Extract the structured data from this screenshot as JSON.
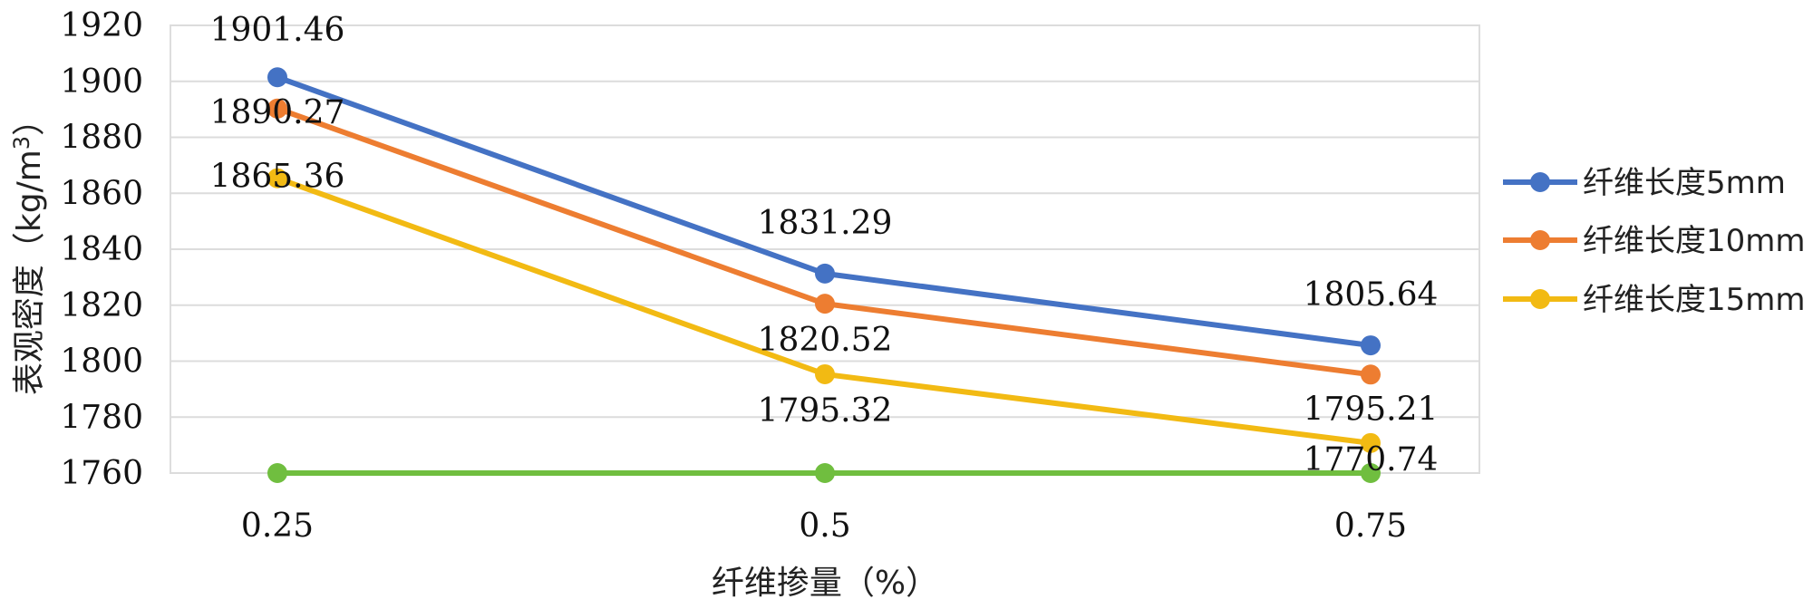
{
  "chart_data": {
    "type": "line",
    "x": [
      "0.25",
      "0.5",
      "0.75"
    ],
    "xlabel": "纤维掺量（%）",
    "ylabel": "表观密度（kg/m",
    "ylabel_superscript": "3",
    "ylabel_suffix": "）",
    "ylim": [
      1760,
      1920
    ],
    "yticks": [
      "1760",
      "1780",
      "1800",
      "1820",
      "1840",
      "1860",
      "1880",
      "1900",
      "1920"
    ],
    "grid": true,
    "legend_position": "right",
    "series": [
      {
        "name": "纤维长度5mm",
        "color": "#4472C4",
        "values": [
          1901.46,
          1831.29,
          1805.64
        ],
        "labels": [
          "1901.46",
          "1831.29",
          "1805.64"
        ]
      },
      {
        "name": "纤维长度10mm",
        "color": "#ED7D31",
        "values": [
          1890.27,
          1820.52,
          1795.21
        ],
        "labels": [
          "1890.27",
          "1820.52",
          "1795.21"
        ]
      },
      {
        "name": "纤维长度15mm",
        "color": "#F2BA13",
        "values": [
          1865.36,
          1795.32,
          1770.74
        ],
        "labels": [
          "1865.36",
          "1795.32",
          "1770.74"
        ]
      },
      {
        "color": "#70BE3F",
        "values": [
          1760,
          1760,
          1760
        ]
      }
    ]
  }
}
